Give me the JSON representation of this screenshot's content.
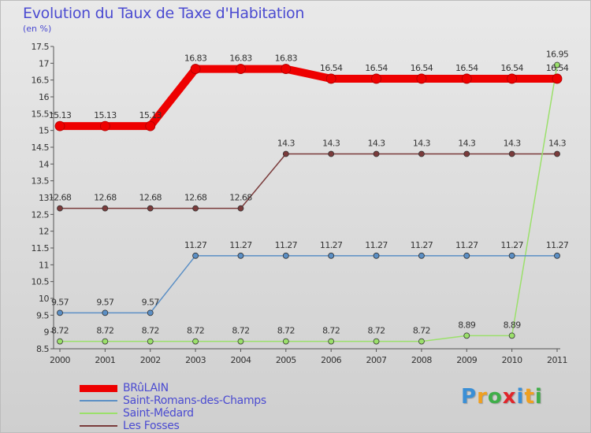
{
  "title": "Evolution du Taux de Taxe d'Habitation",
  "unit_label": "(en %)",
  "logo": {
    "letters": [
      "P",
      "r",
      "o",
      "x",
      "i",
      "t",
      "i"
    ],
    "colors": [
      "#3a8fd6",
      "#f0a020",
      "#3fae49",
      "#e0252b",
      "#3a8fd6",
      "#f0a020",
      "#3fae49"
    ]
  },
  "chart_data": {
    "type": "line",
    "x": [
      "2000",
      "2001",
      "2002",
      "2003",
      "2004",
      "2005",
      "2006",
      "2007",
      "2008",
      "2009",
      "2010",
      "2011"
    ],
    "ylim": [
      8.5,
      17.5
    ],
    "y_ticks": [
      "8.5",
      "9",
      "9.5",
      "10",
      "10.5",
      "11",
      "11.5",
      "12",
      "12.5",
      "13",
      "13.5",
      "14",
      "14.5",
      "15",
      "15.5",
      "16",
      "16.5",
      "17",
      "17.5"
    ],
    "grid": false,
    "legend_position": "bottom-left",
    "series": [
      {
        "name": "BRûLAIN",
        "color": "#ee0000",
        "values": [
          15.13,
          15.13,
          15.13,
          16.83,
          16.83,
          16.83,
          16.54,
          16.54,
          16.54,
          16.54,
          16.54,
          16.54
        ],
        "labels": [
          "15.13",
          "15.13",
          "15.13",
          "16.83",
          "16.83",
          "16.83",
          "16.54",
          "16.54",
          "16.54",
          "16.54",
          "16.54",
          "16.54"
        ]
      },
      {
        "name": "Saint-Romans-des-Champs",
        "color": "#5b8fc5",
        "values": [
          9.57,
          9.57,
          9.57,
          11.27,
          11.27,
          11.27,
          11.27,
          11.27,
          11.27,
          11.27,
          11.27,
          11.27
        ],
        "labels": [
          "9.57",
          "9.57",
          "9.57",
          "11.27",
          "11.27",
          "11.27",
          "11.27",
          "11.27",
          "11.27",
          "11.27",
          "11.27",
          "11.27"
        ]
      },
      {
        "name": "Saint-Médard",
        "color": "#9be06b",
        "values": [
          8.72,
          8.72,
          8.72,
          8.72,
          8.72,
          8.72,
          8.72,
          8.72,
          8.72,
          8.89,
          8.89,
          16.95
        ],
        "labels": [
          "8.72",
          "8.72",
          "8.72",
          "8.72",
          "8.72",
          "8.72",
          "8.72",
          "8.72",
          "8.72",
          "8.89",
          "8.89",
          "16.95"
        ]
      },
      {
        "name": "Les Fosses",
        "color": "#7a3b3b",
        "values": [
          12.68,
          12.68,
          12.68,
          12.68,
          12.68,
          14.3,
          14.3,
          14.3,
          14.3,
          14.3,
          14.3,
          14.3
        ],
        "labels": [
          "12.68",
          "12.68",
          "12.68",
          "12.68",
          "12.68",
          "14.3",
          "14.3",
          "14.3",
          "14.3",
          "14.3",
          "14.3",
          "14.3"
        ]
      }
    ]
  }
}
